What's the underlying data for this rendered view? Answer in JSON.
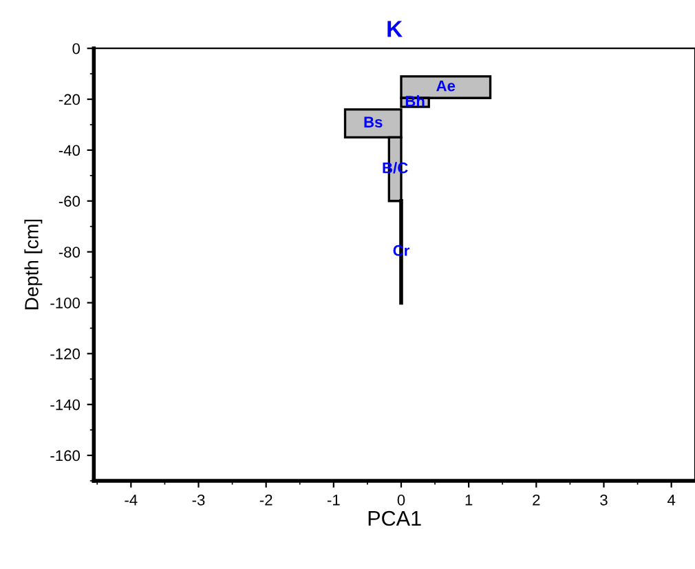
{
  "chart_data": {
    "type": "area",
    "orientation": "horizontal",
    "title": "K",
    "xlabel": "PCA1",
    "ylabel": "Depth [cm]",
    "xlim": [
      -4.55,
      4.35
    ],
    "xticks": [
      -4,
      -3,
      -2,
      -1,
      0,
      1,
      2,
      3,
      4
    ],
    "ylim": [
      -170,
      0
    ],
    "yticks": [
      0,
      -20,
      -40,
      -60,
      -80,
      -100,
      -120,
      -140,
      -160
    ],
    "grid": false,
    "legend": false,
    "series": [
      {
        "name": "Ae",
        "color": "#c0c0c0",
        "x": [
          -11,
          -11,
          -19.5,
          -19.5
        ],
        "values": [
          0,
          1.32,
          1.32,
          0
        ]
      },
      {
        "name": "Bh",
        "color": "#c0c0c0",
        "x": [
          -19.5,
          -19.5,
          -23,
          -23
        ],
        "values": [
          0,
          0.41,
          0.41,
          0
        ]
      },
      {
        "name": "Bs",
        "color": "#c0c0c0",
        "x": [
          -24,
          -24,
          -35,
          -35
        ],
        "values": [
          0,
          -0.83,
          -0.83,
          0
        ]
      },
      {
        "name": "B/C",
        "color": "#c0c0c0",
        "x": [
          -35,
          -35,
          -60,
          -60
        ],
        "values": [
          0,
          -0.18,
          -0.18,
          0
        ]
      },
      {
        "name": "Cr",
        "type": "line",
        "color": "#000000",
        "x": [
          -60,
          -100
        ],
        "values": [
          0,
          0
        ]
      }
    ]
  }
}
